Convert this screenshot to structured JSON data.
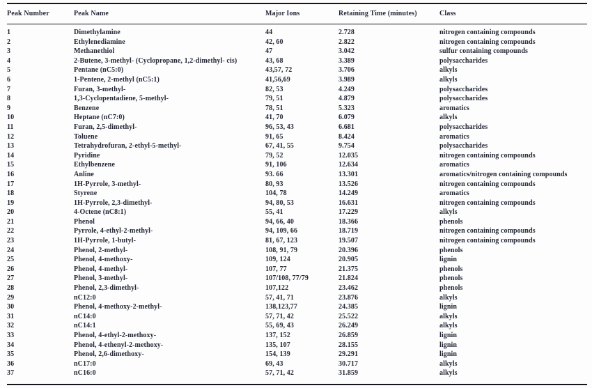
{
  "table": {
    "headers": [
      "Peak Number",
      "Peak Name",
      "Major Ions",
      "Retaining Time (minutes)",
      "Class"
    ],
    "rows": [
      [
        "1",
        "Dimethylamine",
        "44",
        "2.728",
        "nitrogen containing compounds"
      ],
      [
        "2",
        "Ethylenediamine",
        "42, 60",
        "2.822",
        "nitrogen containing compounds"
      ],
      [
        "3",
        "Methanethiol",
        "47",
        "3.042",
        "sulfur containing compounds"
      ],
      [
        "4",
        "2-Butene, 3-methyl- (Cyclopropane, 1,2-dimethyl- cis)",
        "43, 68",
        "3.389",
        "polysaccharides"
      ],
      [
        "5",
        "Pentane (nC5:0)",
        "43,57, 72",
        "3.706",
        "alkyls"
      ],
      [
        "6",
        "1-Pentene, 2-methyl (nC5:1)",
        "41,56,69",
        "3.989",
        "alkyls"
      ],
      [
        "7",
        "Furan, 3-methyl-",
        "82, 53",
        "4.249",
        "polysaccharides"
      ],
      [
        "8",
        "1,3-Cyclopentadiene, 5-methyl-",
        "79, 51",
        "4.879",
        "polysaccharides"
      ],
      [
        "9",
        "Benzene",
        "78, 51",
        "5.323",
        "aromatics"
      ],
      [
        "10",
        "Heptane (nC7:0)",
        "41, 70",
        "6.079",
        "alkyls"
      ],
      [
        "11",
        "Furan, 2,5-dimethyl-",
        "96, 53, 43",
        "6.681",
        "polysaccharides"
      ],
      [
        "12",
        "Toluene",
        "91, 65",
        "8.424",
        "aromatics"
      ],
      [
        "13",
        "Tetrahydrofuran, 2-ethyl-5-methyl-",
        "67, 41, 55",
        "9.754",
        "polysaccharides"
      ],
      [
        "14",
        "Pyridine",
        "79, 52",
        "12.035",
        "nitrogen containing compounds"
      ],
      [
        "15",
        "Ethylbenzene",
        "91, 106",
        "12.634",
        "aromatics"
      ],
      [
        "16",
        "Anline",
        "93. 66",
        "13.301",
        "aromatics/nitrogen containing compounds"
      ],
      [
        "17",
        "1H-Pyrrole, 3-methyl-",
        "80, 93",
        "13.526",
        "nitrogen containing compounds"
      ],
      [
        "18",
        "Styrene",
        "104, 78",
        "14.249",
        "aromatics"
      ],
      [
        "19",
        "1H-Pyrrole, 2,3-dimethyl-",
        "94, 80, 53",
        "16.631",
        "nitrogen containing compounds"
      ],
      [
        "20",
        "4-Octene (nC8:1)",
        "55, 41",
        "17.229",
        "alkyls"
      ],
      [
        "21",
        "Phenol",
        "94, 66, 40",
        "18.366",
        "phenols"
      ],
      [
        "22",
        "Pyrrole, 4-ethyl-2-methyl-",
        "94, 109, 66",
        "18.719",
        "nitrogen containing compounds"
      ],
      [
        "23",
        "1H-Pyrrole, 1-butyl-",
        "81, 67, 123",
        "19.507",
        "nitrogen containing compounds"
      ],
      [
        "24",
        "Phenol, 2-methyl-",
        "108, 91, 79",
        "20.396",
        "phenols"
      ],
      [
        "25",
        "Phenol, 4-methoxy-",
        "109, 124",
        "20.905",
        "lignin"
      ],
      [
        "26",
        "Phenol, 4-methyl-",
        "107, 77",
        "21.375",
        "phenols"
      ],
      [
        "27",
        "Phenol, 3-methyl-",
        "107/108, 77/79",
        "21.824",
        "phenols"
      ],
      [
        "28",
        "Phenol, 2,3-dimethyl-",
        "107,122",
        "23.462",
        "phenols"
      ],
      [
        "29",
        "nC12:0",
        "57, 41, 71",
        "23.876",
        "alkyls"
      ],
      [
        "30",
        "Phenol, 4-methoxy-2-methyl-",
        "138,123,77",
        "24.385",
        "lignin"
      ],
      [
        "31",
        "nC14:0",
        "57, 71, 42",
        "25.522",
        "alkyls"
      ],
      [
        "32",
        "nC14:1",
        "55, 69, 43",
        "26.249",
        "alkyls"
      ],
      [
        "33",
        "Phenol, 4-ethyl-2-methoxy-",
        "137, 152",
        "26.859",
        "lignin"
      ],
      [
        "34",
        "Phenol, 4-ethenyl-2-methoxy-",
        "135, 107",
        "28.155",
        "lignin"
      ],
      [
        "35",
        "Phenol, 2,6-dimethoxy-",
        "154, 139",
        "29.291",
        "lignin"
      ],
      [
        "36",
        "nC17:0",
        "69, 43",
        "30.717",
        "alkyls"
      ],
      [
        "37",
        "nC16:0",
        "57, 71, 42",
        "31.859",
        "alkyls"
      ]
    ]
  },
  "colors": {
    "text": "#232735",
    "rule": "#15151c",
    "background": "#fdfdfd"
  }
}
